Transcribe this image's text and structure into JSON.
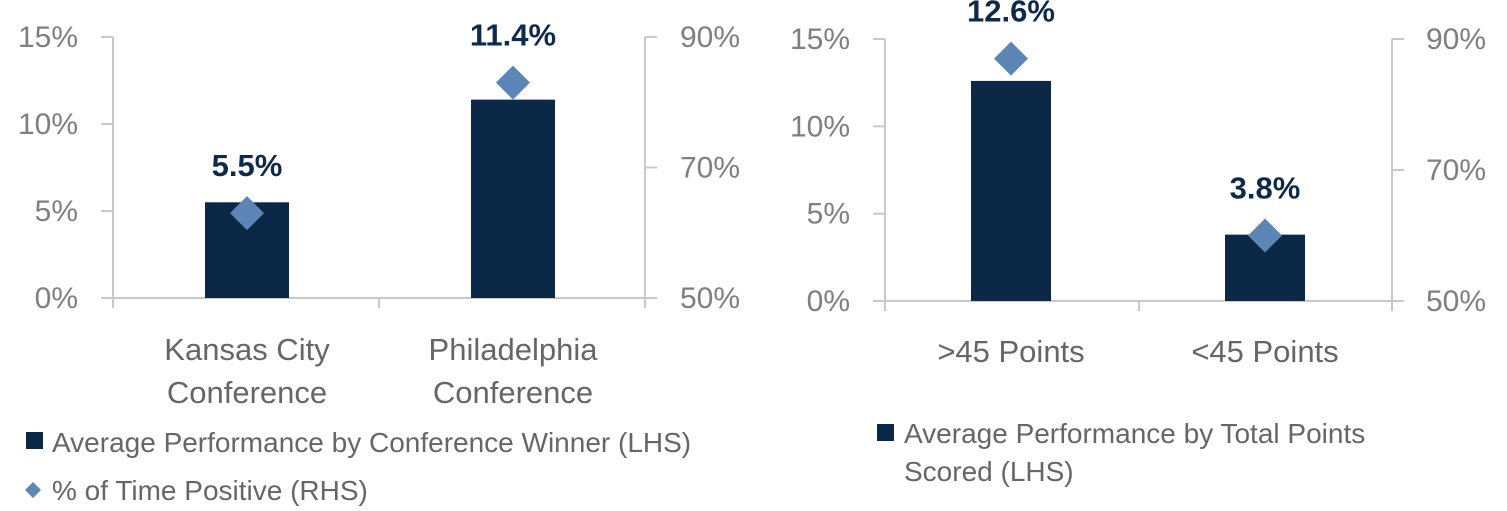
{
  "colors": {
    "bar": "#0b2847",
    "marker": "#5b86b5",
    "axis": "#c9c9c9",
    "tick_text": "#7f7f7f",
    "label_text": "#0d2a4a"
  },
  "chart_data": [
    {
      "type": "bar",
      "categories": [
        "Kansas City Conference",
        "Philadelphia Conference"
      ],
      "category_lines": [
        [
          "Kansas City",
          "Conference"
        ],
        [
          "Philadelphia",
          "Conference"
        ]
      ],
      "series": [
        {
          "name": "Average Performance by Conference Winner (LHS)",
          "axis": "left",
          "values": [
            5.5,
            11.4
          ],
          "data_labels": [
            "5.5%",
            "11.4%"
          ]
        },
        {
          "name": "% of Time Positive (RHS)",
          "axis": "right",
          "marker": "diamond",
          "values": [
            63,
            83
          ]
        }
      ],
      "ylim_left": [
        0,
        15
      ],
      "ylim_right": [
        50,
        90
      ],
      "yticks_left": [
        "0%",
        "5%",
        "10%",
        "15%"
      ],
      "yticks_right": [
        "50%",
        "70%",
        "90%"
      ],
      "legend": [
        {
          "label": "Average Performance by Conference Winner (LHS)",
          "symbol": "square"
        },
        {
          "label": "% of Time Positive (RHS)",
          "symbol": "diamond"
        }
      ],
      "legend_position": "bottom"
    },
    {
      "type": "bar",
      "categories": [
        ">45 Points",
        "<45 Points"
      ],
      "category_lines": [
        [
          ">45 Points"
        ],
        [
          "<45 Points"
        ]
      ],
      "series": [
        {
          "name": "Average Performance by Total Points Scored (LHS)",
          "axis": "left",
          "values": [
            12.6,
            3.8
          ],
          "data_labels": [
            "12.6%",
            "3.8%"
          ]
        },
        {
          "name": "",
          "axis": "right",
          "marker": "diamond",
          "values": [
            87,
            60
          ]
        }
      ],
      "ylim_left": [
        0,
        15
      ],
      "ylim_right": [
        50,
        90
      ],
      "yticks_left": [
        "0%",
        "5%",
        "10%",
        "15%"
      ],
      "yticks_right": [
        "50%",
        "70%",
        "90%"
      ],
      "legend": [
        {
          "label_lines": [
            "Average Performance by Total Points",
            "Scored (LHS)"
          ],
          "symbol": "square"
        }
      ],
      "legend_position": "bottom"
    }
  ]
}
